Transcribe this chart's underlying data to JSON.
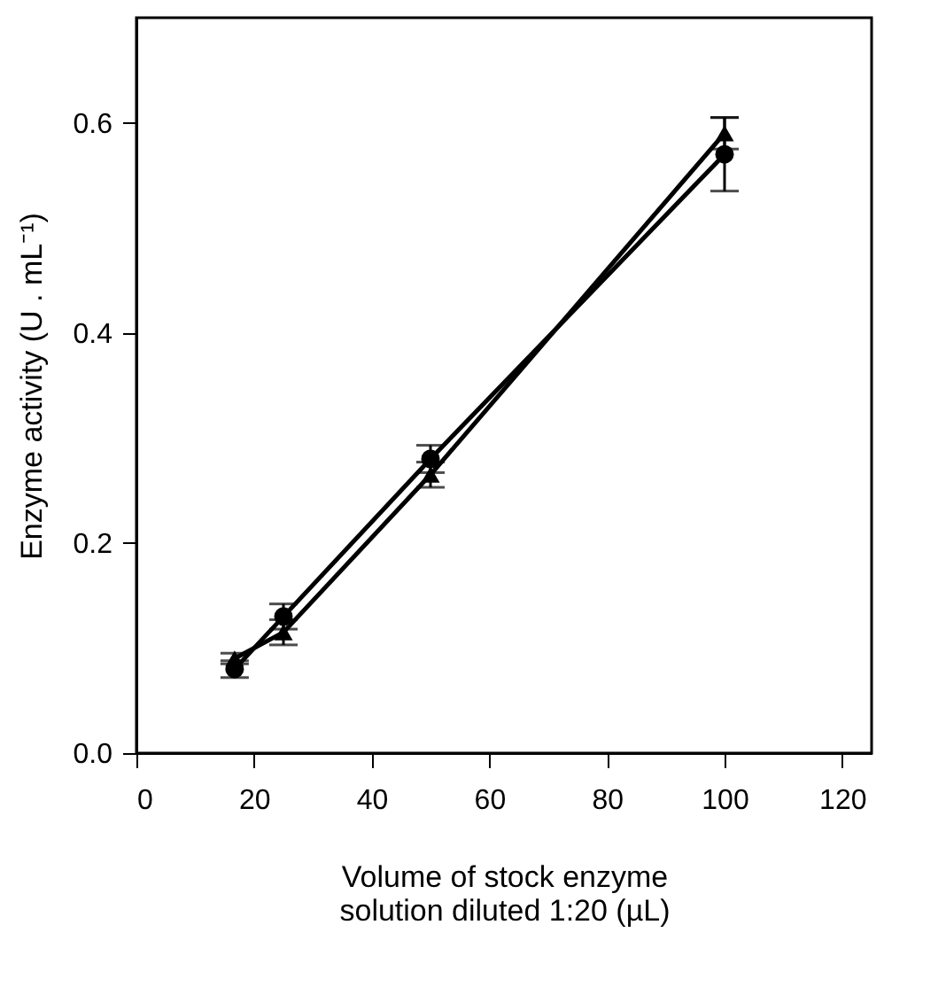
{
  "chart_data": {
    "type": "line",
    "xlabel": "Volume of stock enzyme\nsolution diluted 1:20 (µL)",
    "ylabel": "Enzyme activity (U . mL⁻¹)",
    "x": [
      16.7,
      25,
      50,
      100
    ],
    "series": [
      {
        "color": "#000000",
        "marker": "circle",
        "values": [
          0.08,
          0.13,
          0.28,
          0.57
        ],
        "errors": [
          0.008,
          0.012,
          0.013,
          0.035
        ]
      },
      {
        "color": "#000000",
        "marker": "triangle",
        "values": [
          0.09,
          0.115,
          0.265,
          0.59
        ],
        "errors": [
          0.005,
          0.012,
          0.012,
          0.015
        ]
      }
    ],
    "xlim": [
      0,
      125
    ],
    "xticks": [
      0,
      20,
      40,
      60,
      80,
      100,
      120
    ],
    "ylim": [
      0,
      0.7
    ],
    "yticks": [
      {
        "value": 0,
        "label": "0.0"
      },
      0.2,
      0.4,
      0.6
    ],
    "grid": false,
    "line_style": "solid"
  }
}
